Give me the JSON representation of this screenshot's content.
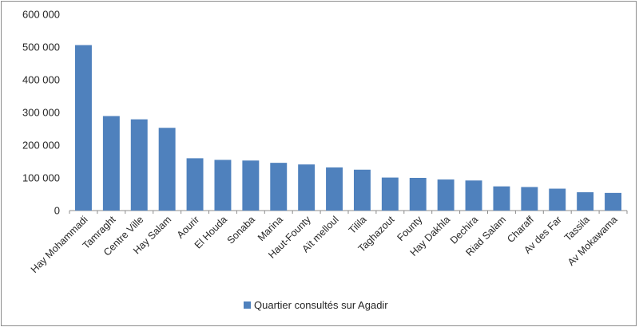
{
  "chart_data": {
    "type": "bar",
    "title": "",
    "xlabel": "",
    "ylabel": "",
    "ylim": [
      0,
      600000
    ],
    "yticks": [
      0,
      100000,
      200000,
      300000,
      400000,
      500000,
      600000
    ],
    "ytick_labels": [
      "0",
      "100 000",
      "200 000",
      "300 000",
      "400 000",
      "500 000",
      "600 000"
    ],
    "grid": false,
    "legend_position": "bottom",
    "bar_color": "#4f81bd",
    "categories": [
      "Hay Mohammadi",
      "Tamraght",
      "Centre Ville",
      "Hay Salam",
      "Aourir",
      "El Houda",
      "Sonaba",
      "Marina",
      "Haut-Founty",
      "Aït melloul",
      "Tilila",
      "Taghazout",
      "Founty",
      "Hay Dakhla",
      "Dechira",
      "Riad Salam",
      "Charaff",
      "Av des Far",
      "Tassila",
      "Av Mokawama"
    ],
    "series": [
      {
        "name": "Quartier consultés sur Agadir",
        "values": [
          506000,
          289000,
          279000,
          253000,
          160000,
          155000,
          153000,
          146000,
          141000,
          132000,
          125000,
          101000,
          100000,
          95000,
          92000,
          74000,
          72000,
          67000,
          56000,
          54000
        ]
      }
    ]
  }
}
